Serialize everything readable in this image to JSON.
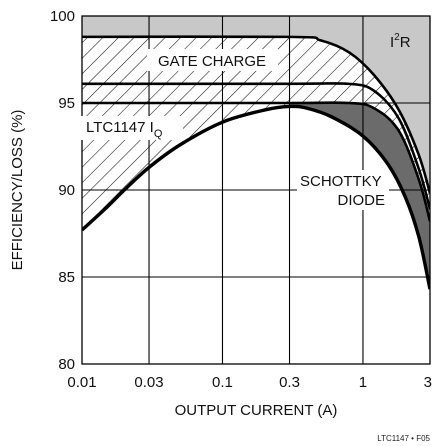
{
  "chart_data": {
    "type": "area",
    "xlabel": "OUTPUT CURRENT (A)",
    "ylabel": "EFFICIENCY/LOSS (%)",
    "xscale": "log",
    "xlim": [
      0.01,
      3
    ],
    "ylim": [
      80,
      100
    ],
    "x_ticks": [
      "0.01",
      "0.03",
      "0.1",
      "0.3",
      "1",
      "3"
    ],
    "y_ticks": [
      "80",
      "85",
      "90",
      "95",
      "100"
    ],
    "grid": true,
    "annotations": {
      "gate_charge": "GATE CHARGE",
      "i2r_base": "I",
      "i2r_sup": "2",
      "i2r_tail": "R",
      "iq_base": "LTC1147 I",
      "iq_sub": "Q",
      "schottky": "SCHOTTKY",
      "diode": "DIODE"
    },
    "figure_id": "LTC1147 • F05",
    "boundaries": [
      {
        "name": "loss-boundary-top",
        "x": [
          0.01,
          0.3,
          0.5,
          0.8,
          1.2,
          1.8,
          2.5,
          3
        ],
        "y": [
          98.8,
          98.8,
          98.6,
          97.9,
          96.6,
          94.6,
          92.0,
          89.8
        ]
      },
      {
        "name": "loss-boundary-gate",
        "x": [
          0.01,
          0.3,
          0.8,
          1.2,
          1.8,
          2.5,
          3
        ],
        "y": [
          96.1,
          96.1,
          96.1,
          95.7,
          94.1,
          91.2,
          88.9
        ]
      },
      {
        "name": "loss-boundary-iq",
        "x": [
          0.01,
          0.3,
          0.8,
          1.2,
          1.8,
          2.5,
          3
        ],
        "y": [
          95.0,
          95.0,
          95.0,
          94.7,
          93.4,
          90.6,
          88.2
        ]
      },
      {
        "name": "efficiency-curve",
        "x": [
          0.01,
          0.015,
          0.02,
          0.03,
          0.05,
          0.1,
          0.2,
          0.3,
          0.4,
          0.6,
          1.0,
          1.5,
          2.0,
          2.5,
          3.0
        ],
        "y": [
          87.7,
          89.0,
          90.0,
          91.3,
          92.6,
          93.9,
          94.6,
          94.8,
          94.7,
          94.2,
          93.1,
          91.5,
          89.6,
          87.3,
          84.3
        ]
      }
    ]
  }
}
